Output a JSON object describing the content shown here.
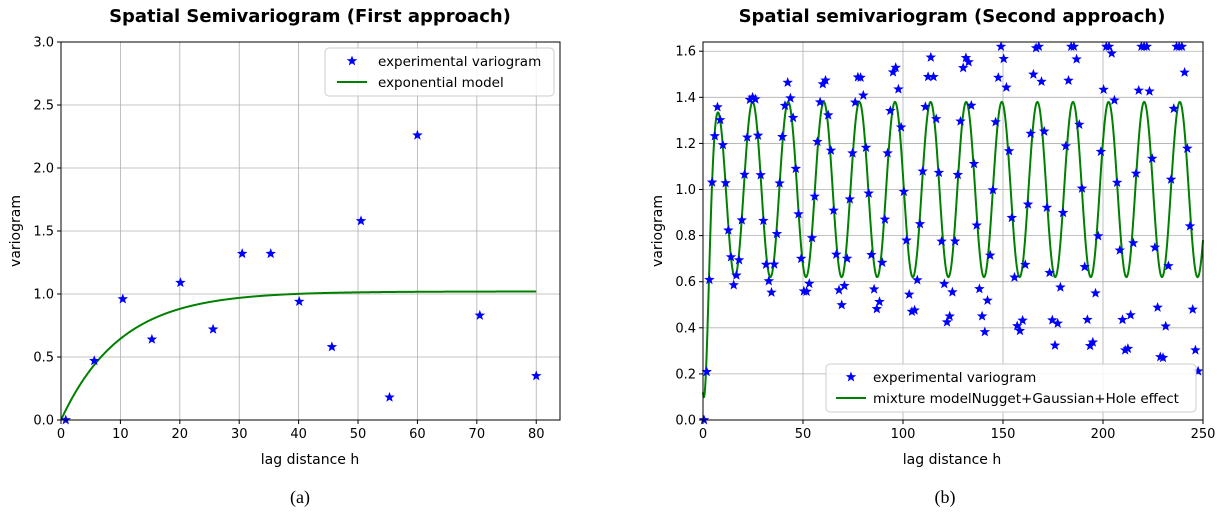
{
  "chart_data": [
    {
      "type": "scatter",
      "title": "Spatial Semivariogram (First approach)",
      "xlabel": "lag distance h",
      "ylabel": "variogram",
      "xlim": [
        0,
        84
      ],
      "ylim": [
        0,
        3.0
      ],
      "xticks": [
        0,
        10,
        20,
        30,
        40,
        50,
        60,
        70,
        80
      ],
      "yticks": [
        0.0,
        0.5,
        1.0,
        1.5,
        2.0,
        2.5,
        3.0
      ],
      "ytick_labels": [
        "0.0",
        "0.5",
        "1.0",
        "1.5",
        "2.0",
        "2.5",
        "3.0"
      ],
      "grid": true,
      "legend_position": "upper right",
      "caption": "(a)",
      "series": [
        {
          "name": "experimental variogram",
          "kind": "scatter",
          "marker": "star",
          "color": "#0000ff",
          "x": [
            0.8,
            5.6,
            10.4,
            15.3,
            20.1,
            25.6,
            30.5,
            35.3,
            40.1,
            45.6,
            50.5,
            55.3,
            60.0,
            70.5,
            80.0
          ],
          "y": [
            0.0,
            0.47,
            0.96,
            0.64,
            1.09,
            0.72,
            1.32,
            1.32,
            0.94,
            0.58,
            1.58,
            0.18,
            2.26,
            0.83,
            0.35
          ]
        },
        {
          "name": "exponential model",
          "kind": "line",
          "color": "#008000",
          "model": {
            "nugget": 0.0,
            "sill": 1.02,
            "range": 10.0,
            "x_max": 80
          }
        }
      ]
    },
    {
      "type": "scatter",
      "title": "Spatial semivariogram (Second approach)",
      "xlabel": "lag distance h",
      "ylabel": "variogram",
      "xlim": [
        0,
        250
      ],
      "ylim": [
        0,
        1.64
      ],
      "xticks": [
        0,
        50,
        100,
        150,
        200,
        250
      ],
      "yticks": [
        0.0,
        0.2,
        0.4,
        0.6,
        0.8,
        1.0,
        1.2,
        1.4,
        1.6
      ],
      "ytick_labels": [
        "0.0",
        "0.2",
        "0.4",
        "0.6",
        "0.8",
        "1.0",
        "1.2",
        "1.4",
        "1.6"
      ],
      "grid": true,
      "legend_position": "lower right",
      "caption": "(b)",
      "series": [
        {
          "name": "experimental variogram",
          "kind": "scatter",
          "marker": "star",
          "color": "#0000ff",
          "points": {
            "x_start": 0.5,
            "x_step": 1.35,
            "count": 184,
            "nugget": 0.0,
            "sill": 1.0,
            "range": 3.5,
            "amplitude": 0.38,
            "period": 17.8,
            "phase": 0.9,
            "amplitude_growth": 0.0016
          }
        },
        {
          "name": "mixture modelNugget+Gaussian+Hole effect",
          "kind": "line",
          "color": "#008000",
          "model": {
            "nugget": 0.12,
            "sill": 1.0,
            "range": 3.5,
            "amplitude": 0.38,
            "period": 17.8,
            "phase": 0.9,
            "x_max": 250
          }
        }
      ]
    }
  ]
}
